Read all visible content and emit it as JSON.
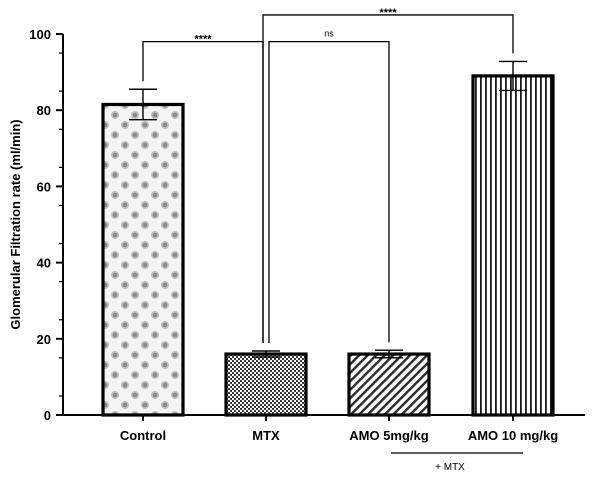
{
  "chart_data": {
    "type": "bar",
    "title": "",
    "xlabel": "",
    "ylabel": "Glomerular Filtration rate (ml/min)",
    "ylim": [
      0,
      100
    ],
    "yticks": [
      0,
      20,
      40,
      60,
      80,
      100
    ],
    "categories": [
      "Control",
      "MTX",
      "AMO 5mg/kg",
      "AMO 10 mg/kg"
    ],
    "values": [
      81.5,
      16,
      16,
      89
    ],
    "error": [
      4,
      0.8,
      1,
      3.8
    ],
    "fills": [
      "checker-dots",
      "checker-fine",
      "diagonal-hatch",
      "vertical-stripes"
    ],
    "comparisons": [
      {
        "from": 0,
        "to": 1,
        "label": "****",
        "y": 98
      },
      {
        "from": 1,
        "to": 2,
        "label": "ns",
        "y": 98
      },
      {
        "from": 1,
        "to": 3,
        "label": "****",
        "y": 105
      }
    ],
    "group_note": {
      "label": "+ MTX",
      "from": 2,
      "to": 3
    },
    "grid": false,
    "legend": "none"
  }
}
